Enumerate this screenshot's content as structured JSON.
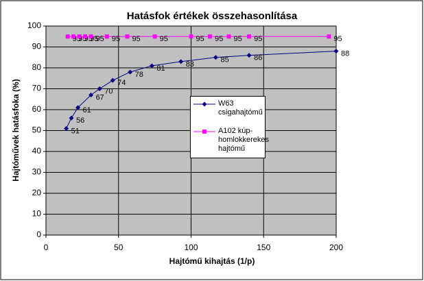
{
  "chart_data": {
    "type": "scatter",
    "title": "Hatásfok értékek összehasonlítása",
    "x_label": "Hajtómű kihajtás (1/p)",
    "y_label": "Hajtóművek hatásfoka (%)",
    "xlim": [
      0,
      200
    ],
    "xticks": [
      0,
      50,
      100,
      150,
      200
    ],
    "ylim": [
      0,
      100
    ],
    "yticks": [
      0,
      10,
      20,
      30,
      40,
      50,
      60,
      70,
      80,
      90,
      100
    ],
    "grid": true,
    "legend": "right",
    "series": [
      {
        "name": "W63 csigahajtómű",
        "color": "#000080",
        "marker": "diamond",
        "x": [
          14,
          17.5,
          22,
          31,
          37,
          46,
          58,
          73,
          93,
          117,
          140,
          200
        ],
        "values": [
          51,
          56,
          61,
          67,
          70,
          74,
          78,
          81,
          83,
          85,
          86,
          88
        ]
      },
      {
        "name": "A102 kúp-homlokkerekes hajtómű",
        "color": "#ff00ff",
        "marker": "square",
        "x": [
          15,
          19,
          23,
          27,
          31,
          42,
          56,
          75,
          100,
          113,
          126,
          140,
          195
        ],
        "values": [
          95,
          95,
          95,
          95,
          95,
          95,
          95,
          95,
          95,
          95,
          95,
          95,
          95
        ]
      }
    ]
  }
}
